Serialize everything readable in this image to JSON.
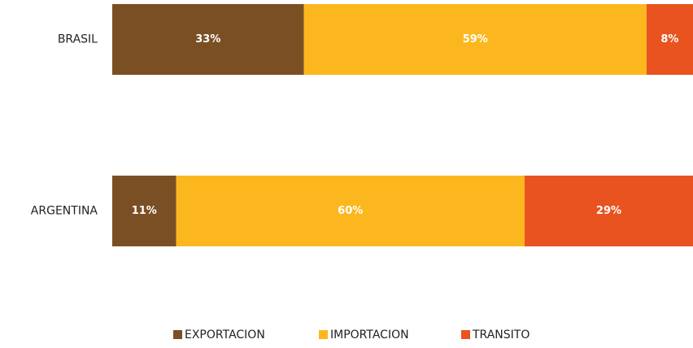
{
  "chart_data": {
    "type": "stacked_bar_horizontal_100",
    "categories": [
      "BRASIL",
      "ARGENTINA"
    ],
    "series": [
      {
        "name": "EXPORTACION",
        "color": "#7b4f24",
        "values": [
          33,
          11
        ],
        "value_labels": [
          "33%",
          "11%"
        ]
      },
      {
        "name": "IMPORTACION",
        "color": "#fdb71e",
        "values": [
          59,
          60
        ],
        "value_labels": [
          "59%",
          "60%"
        ]
      },
      {
        "name": "TRANSITO",
        "color": "#e8531f",
        "values": [
          8,
          29
        ],
        "value_labels": [
          "8%",
          "29%"
        ]
      }
    ],
    "legend": "bottom"
  }
}
